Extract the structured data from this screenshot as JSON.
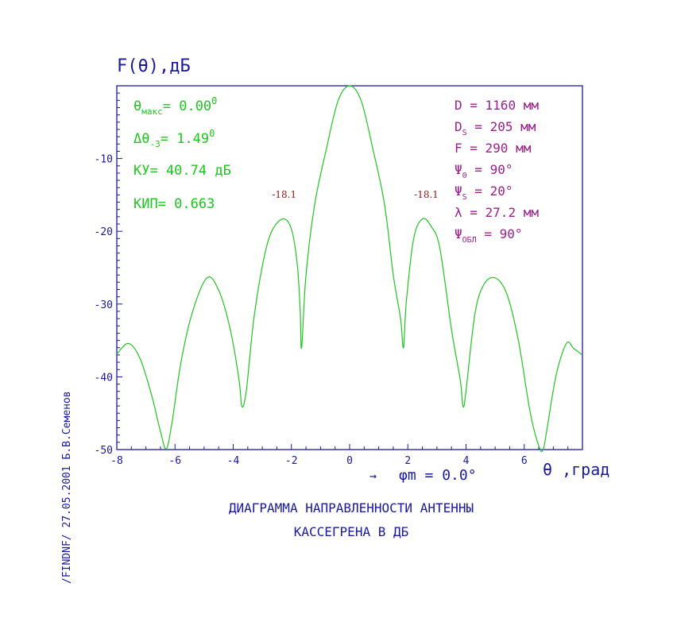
{
  "colors": {
    "axis": "#1a1a9c",
    "curve": "#22c422",
    "left_params": "#22c422",
    "right_params": "#9c1f8c",
    "peak_labels": "#8b1a1a",
    "caption": "#1a1a9c"
  },
  "chart_data": {
    "type": "line",
    "title_lines": [
      "ДИАГРАММА НАПРАВЛЕННОСТИ АНТЕННЫ",
      "КАССЕГРЕНА В ДБ"
    ],
    "ylabel": "F(θ),дБ",
    "xlabel": "θ ,град",
    "xlim": [
      -8,
      8
    ],
    "ylim": [
      -50,
      0
    ],
    "xticks": [
      -8,
      -6,
      -4,
      -2,
      0,
      2,
      4,
      6
    ],
    "xtick_labels": [
      "-8",
      "-6",
      "-4",
      "-2",
      "0",
      "2",
      "4",
      "6"
    ],
    "yticks": [
      -10,
      -20,
      -30,
      -40,
      -50
    ],
    "ytick_labels": [
      "-10",
      "-20",
      "-30",
      "-40",
      "-50"
    ],
    "grid": false,
    "series": [
      {
        "x": [
          -8.0,
          -7.6,
          -7.2,
          -6.8,
          -6.5,
          -6.3,
          -6.1,
          -5.8,
          -5.4,
          -4.9,
          -4.5,
          -4.1,
          -3.8,
          -3.7,
          -3.55,
          -3.3,
          -3.0,
          -2.7,
          -2.3,
          -2.0,
          -1.8,
          -1.7,
          -1.65,
          -1.5,
          -1.2,
          -0.8,
          -0.4,
          0.0,
          0.4,
          0.8,
          1.2,
          1.5,
          1.75,
          1.85,
          1.95,
          2.2,
          2.5,
          2.8,
          3.1,
          3.5,
          3.8,
          3.9,
          4.0,
          4.3,
          4.6,
          5.0,
          5.4,
          5.8,
          6.2,
          6.5,
          6.65,
          6.8,
          7.1,
          7.45,
          7.7,
          8.0
        ],
        "y": [
          -36.9,
          -35.4,
          -37.5,
          -42.6,
          -47.5,
          -49.9,
          -46.2,
          -38.1,
          -31.1,
          -26.4,
          -28.1,
          -33.5,
          -40.4,
          -44.1,
          -41.9,
          -32.3,
          -24.8,
          -20.2,
          -18.3,
          -19.7,
          -24.5,
          -30.7,
          -36.0,
          -26.0,
          -16.3,
          -8.7,
          -2.1,
          0.0,
          -2.1,
          -8.7,
          -16.3,
          -26.0,
          -32.0,
          -36.0,
          -29.6,
          -21.0,
          -18.3,
          -19.3,
          -22.3,
          -33.5,
          -40.4,
          -44.1,
          -41.9,
          -31.5,
          -27.4,
          -26.4,
          -28.6,
          -35.0,
          -44.8,
          -49.5,
          -50.0,
          -46.7,
          -39.7,
          -35.4,
          -36.1,
          -37.0
        ]
      }
    ],
    "annotations": [
      {
        "text": "-18.1",
        "x": -2.3,
        "y": -18.1
      },
      {
        "text": "-18.1",
        "x": 2.5,
        "y": -18.1
      }
    ],
    "scan_label": {
      "arrow": "→",
      "symbol": "φm",
      "value": " = 0.0°"
    }
  },
  "left_params": {
    "theta_max": {
      "symbol": "θ",
      "sub": "макс",
      "value": "= 0.00",
      "sup": "0"
    },
    "delta_theta": {
      "symbol": "Δθ",
      "sub": "-3",
      "value": "= 1.49",
      "sup": "0"
    },
    "gain": "КУ= 40.74 дБ",
    "efficiency": "КИП= 0.663"
  },
  "right_params": [
    {
      "symbol": "D",
      "sub": "",
      "value": " =  1160  мм"
    },
    {
      "symbol": "D",
      "sub": "S",
      "value": " =  205  мм"
    },
    {
      "symbol": "F",
      "sub": "",
      "value": " =  290  мм"
    },
    {
      "symbol": "Ψ",
      "sub": "0",
      "value": " =  90°"
    },
    {
      "symbol": "Ψ",
      "sub": "S",
      "value": " =  20°"
    },
    {
      "symbol": "λ",
      "sub": "",
      "value": " = 27.2  мм"
    },
    {
      "symbol": "Ψ",
      "sub": "ОБЛ",
      "value": " =  90°"
    }
  ],
  "side_text": "/FINDNF/   27.05.2001   Б.В.Семенов"
}
